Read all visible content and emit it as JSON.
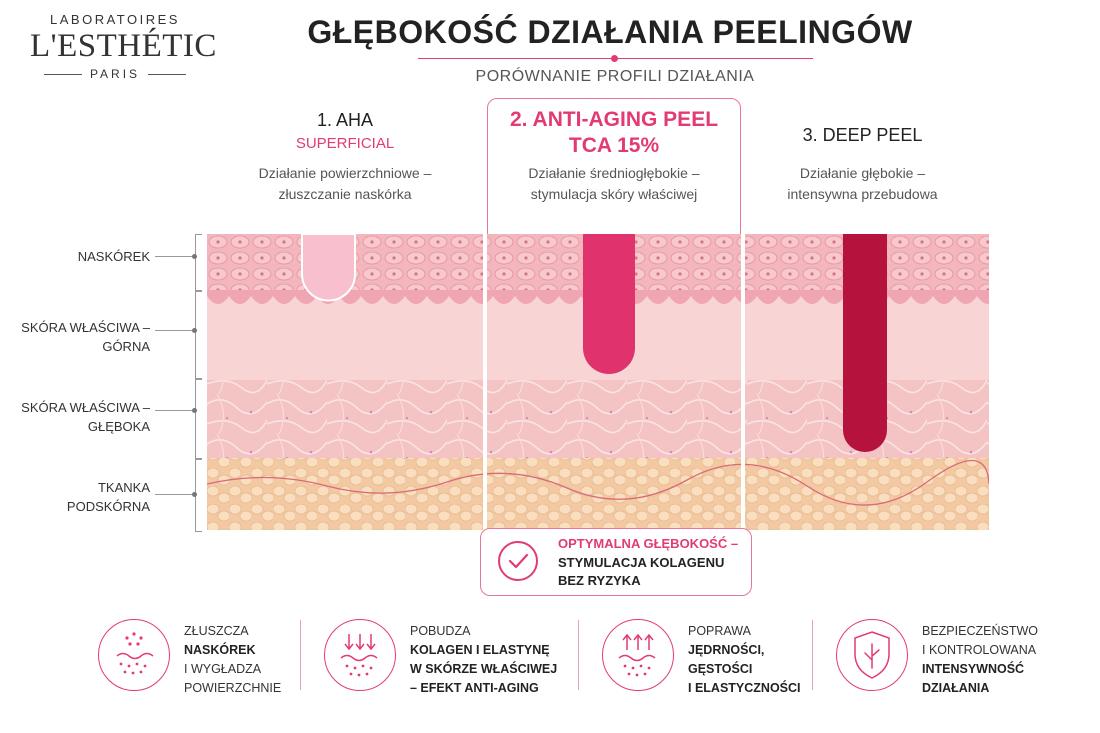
{
  "logo": {
    "top": "LABORATOIRES",
    "main": "L'ESTHÉTIC",
    "bottom": "PARIS"
  },
  "header": {
    "title": "GŁĘBOKOŚĆ DZIAŁANIA PEELINGÓW",
    "subtitle": "PORÓWNANIE PROFILI DZIAŁANIA"
  },
  "columns": [
    {
      "title": "1. AHA",
      "subtitle": "SUPERFICIAL",
      "desc1": "Działanie powierzchniowe –",
      "desc2": "złuszczanie naskórka"
    },
    {
      "title1": "2. ANTI-AGING PEEL",
      "title2": "TCA 15%",
      "desc1": "Działanie średniogłębokie –",
      "desc2": "stymulacja skóry właściwej"
    },
    {
      "title": "3. DEEP PEEL",
      "desc1": "Działanie głębokie –",
      "desc2": "intensywna przebudowa"
    }
  ],
  "layers": [
    {
      "line1": "NASKÓREK"
    },
    {
      "line1": "SKÓRA WŁAŚCIWA –",
      "line2": "GÓRNA"
    },
    {
      "line1": "SKÓRA WŁAŚCIWA –",
      "line2": "GŁĘBOKA"
    },
    {
      "line1": "TKANKA",
      "line2": "PODSKÓRNA"
    }
  ],
  "penetration_depth": [
    {
      "peel": "AHA",
      "layers_reached": 1,
      "color": "#f7b6c9"
    },
    {
      "peel": "TCA 15%",
      "layers_reached": 2,
      "color": "#e0336e"
    },
    {
      "peel": "DEEP PEEL",
      "layers_reached": 3,
      "color": "#b5123e"
    }
  ],
  "optimal": {
    "line1": "OPTYMALNA GŁĘBOKOŚĆ –",
    "line2": "STYMULACJA KOLAGENU",
    "line3": "BEZ RYZYKA"
  },
  "benefits": [
    {
      "icon": "exfoliation-icon",
      "l1": "ZŁUSZCZA",
      "l2": "NASKÓREK",
      "l3": "I WYGŁADZA",
      "l4": "POWIERZCHNIE"
    },
    {
      "icon": "collagen-down-arrows-icon",
      "l1": "POBUDZA",
      "l2": "KOLAGEN I ELASTYNĘ",
      "l3": "W SKÓRZE WŁAŚCIWEJ",
      "l4": "– EFEKT ANTI-AGING"
    },
    {
      "icon": "firmness-up-arrows-icon",
      "l1": "POPRAWA",
      "l2": "JĘDRNOŚCI,",
      "l3": "GĘSTOŚCI",
      "l4": "I ELASTYCZNOŚCI"
    },
    {
      "icon": "safety-shield-icon",
      "l1": "BEZPIECZEŃSTWO",
      "l2": "I KONTROLOWANA",
      "l3": "INTENSYWNOŚĆ",
      "l4": "DZIAŁANIA"
    }
  ],
  "colors": {
    "accent": "#e23b74",
    "epidermis": "#f3b5bd",
    "dermis_upper": "#f8d3d3",
    "dermis_deep": "#f4c3c3",
    "fat": "#f5d4b0"
  }
}
